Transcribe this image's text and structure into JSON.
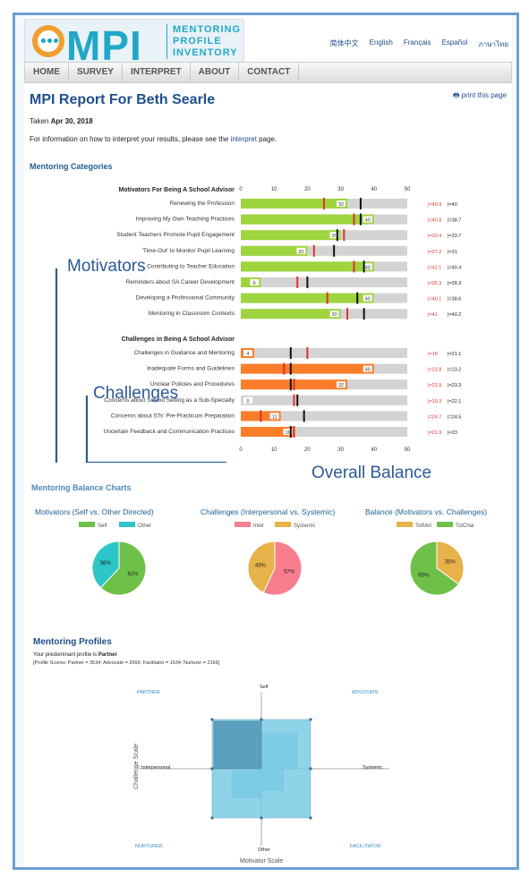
{
  "header": {
    "logo_text": "MPI",
    "logo_sub": [
      "MENTORING",
      "PROFILE",
      "INVENTORY"
    ],
    "languages": [
      "简体中文",
      "English",
      "Français",
      "Español",
      "ภาษาไทย"
    ]
  },
  "nav": [
    "HOME",
    "SURVEY",
    "INTERPRET",
    "ABOUT",
    "CONTACT"
  ],
  "print_label": "print this page",
  "report": {
    "title": "MPI Report For Beth Searle",
    "taken_prefix": "Taken",
    "taken_date": "Apr 30, 2018",
    "info_pre": "For information on how to interpret your results, please see the",
    "info_link": "interpret",
    "info_post": "page."
  },
  "mentoring_categories_title": "Mentoring Categories",
  "axis_ticks": [
    "0",
    "10",
    "20",
    "30",
    "40",
    "50"
  ],
  "motivators": {
    "heading": "Motivators For Being A School Advisor",
    "items": [
      {
        "label": "Renewing the Profession",
        "value": 32,
        "red": 25,
        "black": 36,
        "red_label": "|=40.9",
        "black_label": "|=40"
      },
      {
        "label": "Improving My Own Teaching Practices",
        "value": 40,
        "red": 34,
        "black": 36,
        "red_label": "|=40.8",
        "black_label": "|=38.7"
      },
      {
        "label": "Student Teachers Promote Pupil Engagement",
        "value": 30,
        "red": 31,
        "black": 29,
        "red_label": "|=32.4",
        "black_label": "|=33.7"
      },
      {
        "label": "'Time-Out' to Monitor Pupil Learning",
        "value": 20,
        "red": 22,
        "black": 28,
        "red_label": "|=27.2",
        "black_label": "|=31"
      },
      {
        "label": "Contributing to Teacher Education",
        "value": 40,
        "red": 34,
        "black": 37,
        "red_label": "|=42.1",
        "black_label": "|=40.4"
      },
      {
        "label": "Reminders about SA Career Development",
        "value": 6,
        "red": 17,
        "black": 20,
        "red_label": "|=25.3",
        "black_label": "|=28.3"
      },
      {
        "label": "Developing a Professional Community",
        "value": 40,
        "red": 26,
        "black": 35,
        "red_label": "|=40.1",
        "black_label": "|=38.6"
      },
      {
        "label": "Mentoring in Classroom Contexts",
        "value": 30,
        "red": 32,
        "black": 37,
        "red_label": "|=41",
        "black_label": "|=40.2"
      }
    ]
  },
  "challenges": {
    "heading": "Challenges in Being A School Advisor",
    "items": [
      {
        "label": "Challenges in Guidance and Mentoring",
        "value": 4,
        "red": 20,
        "black": 15,
        "red_label": "|=18",
        "black_label": "|=21.1"
      },
      {
        "label": "Inadequate Forms and Guidelines",
        "value": 40,
        "red": 13,
        "black": 15,
        "red_label": "|=21.8",
        "black_label": "|=23.2"
      },
      {
        "label": "Unclear Policies and Procedures",
        "value": 32,
        "red": 16,
        "black": 15,
        "red_label": "|=21.9",
        "black_label": "|=23.3"
      },
      {
        "label": "Concerns about School Setting as a Sub-Specialty",
        "value": 0,
        "red": 16,
        "black": 17,
        "red_label": "|=19.3",
        "black_label": "|=22.1"
      },
      {
        "label": "Concerns about STs' Pre-Practicum Preparation",
        "value": 12,
        "red": 6,
        "black": 19,
        "red_label": "|=24.7",
        "black_label": "|=24.5"
      },
      {
        "label": "Uncertain Feedback and Communication Practices",
        "value": 16,
        "red": 16,
        "black": 15,
        "red_label": "|=21.9",
        "black_label": "|=23"
      }
    ]
  },
  "annotations": {
    "motivators": "Motivators",
    "challenges": "Challenges",
    "overall": "Overall Balance"
  },
  "balance_title": "Mentoring Balance Charts",
  "chart_data": [
    {
      "type": "pie",
      "title": "Motivators (Self vs. Other Directed)",
      "labels": [
        "Self",
        "Other"
      ],
      "values": [
        62,
        38
      ],
      "colors": [
        "#6ec049",
        "#2cc6c8"
      ]
    },
    {
      "type": "pie",
      "title": "Challenges (Interpersonal vs. Systemic)",
      "labels": [
        "Inter",
        "Systemic"
      ],
      "values": [
        57,
        43
      ],
      "colors": [
        "#f87e8e",
        "#e8b24a"
      ]
    },
    {
      "type": "pie",
      "title": "Balance (Motivators vs. Challenges)",
      "labels": [
        "TotMot",
        "TotChal"
      ],
      "values": [
        35,
        65
      ],
      "colors": [
        "#e8b24a",
        "#6ec049"
      ]
    }
  ],
  "profiles": {
    "title": "Mentoring Profiles",
    "predominant_pre": "Your predominant profile is",
    "predominant": "Partner",
    "scores": "[Profile Scores: Partner = 3534; Advocate = 2666; Facilitator = 1634; Nurturer = 2166]",
    "partner": 3534,
    "advocate": 2666,
    "facilitator": 1634,
    "nurturer": 2166,
    "quadrants": [
      "PARTNER",
      "ADVOCATE",
      "NURTURER",
      "FACILITATOR"
    ],
    "axis_top": "Self",
    "axis_bottom": "Other",
    "axis_left": "Interpersonal",
    "axis_right": "Systemic",
    "xlabel": "Motivator Scale",
    "ylabel": "Challenge Scale"
  }
}
